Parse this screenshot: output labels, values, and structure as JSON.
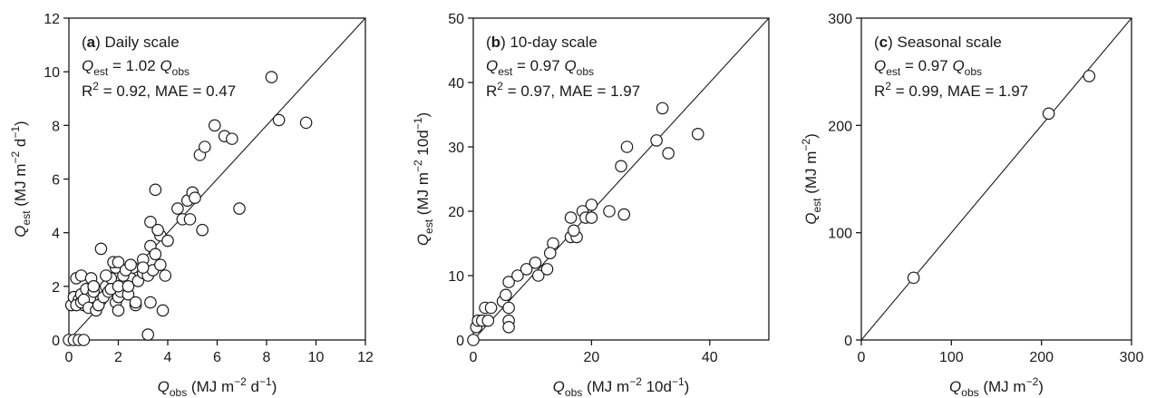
{
  "chart_data": [
    {
      "type": "scatter",
      "panel": "a",
      "label": "Daily scale",
      "equation": {
        "lhs_sym": "Q",
        "lhs_sub": "est",
        "mid": " = 1.02 ",
        "rhs_sym": "Q",
        "rhs_sub": "obs"
      },
      "stats": {
        "r": "R",
        "sup": "2",
        "rest": " = 0.92, MAE = 0.47"
      },
      "xlabel": {
        "sym": "Q",
        "sub": "obs",
        "pre": " (MJ m",
        "exp1": "−2",
        "mid": " d",
        "exp2": "−1",
        "post": ")"
      },
      "ylabel": {
        "sym": "Q",
        "sub": "est",
        "pre": " (MJ m",
        "exp1": "−2",
        "mid": " d",
        "exp2": "−1",
        "post": ")"
      },
      "xlim": [
        0,
        12
      ],
      "ylim": [
        0,
        12
      ],
      "xticks": [
        0,
        2,
        4,
        6,
        8,
        10,
        12
      ],
      "yticks": [
        0,
        2,
        4,
        6,
        8,
        10,
        12
      ],
      "line_slope": 1.0,
      "x": [
        0.0,
        0.1,
        0.2,
        0.3,
        0.4,
        0.5,
        0.6,
        0.2,
        0.4,
        0.5,
        0.6,
        0.7,
        0.8,
        0.9,
        1.0,
        0.3,
        0.5,
        0.6,
        0.8,
        1.0,
        1.1,
        1.2,
        1.3,
        0.9,
        1.0,
        1.2,
        1.4,
        1.5,
        1.6,
        1.7,
        1.8,
        1.9,
        2.0,
        2.1,
        2.2,
        2.3,
        2.4,
        2.5,
        1.5,
        1.7,
        1.9,
        2.0,
        2.2,
        2.4,
        2.6,
        2.8,
        3.0,
        1.8,
        2.0,
        2.3,
        2.5,
        2.7,
        3.0,
        3.2,
        3.4,
        1.3,
        2.0,
        2.7,
        3.0,
        3.3,
        3.5,
        3.7,
        3.9,
        3.3,
        3.5,
        3.7,
        3.8,
        4.0,
        3.6,
        4.4,
        4.6,
        4.8,
        4.9,
        5.0,
        5.1,
        5.3,
        5.4,
        5.5,
        5.9,
        6.3,
        6.6,
        6.9,
        3.3,
        3.2,
        8.2,
        8.5,
        9.6
      ],
      "y": [
        0.0,
        1.3,
        0.0,
        2.3,
        0.0,
        2.4,
        0.0,
        1.6,
        1.5,
        1.7,
        1.3,
        1.9,
        1.4,
        1.6,
        1.8,
        1.3,
        1.4,
        1.5,
        1.2,
        2.0,
        1.1,
        1.3,
        1.5,
        2.3,
        2.0,
        1.3,
        1.6,
        2.0,
        1.8,
        2.3,
        1.9,
        1.4,
        1.6,
        1.8,
        2.1,
        2.5,
        1.7,
        2.3,
        2.4,
        1.9,
        2.7,
        2.0,
        2.4,
        2.0,
        2.7,
        2.2,
        3.0,
        2.9,
        2.9,
        2.6,
        2.8,
        1.3,
        2.5,
        2.4,
        2.6,
        3.4,
        1.1,
        1.4,
        2.7,
        3.5,
        3.2,
        2.8,
        2.4,
        4.4,
        5.6,
        3.9,
        1.1,
        3.7,
        4.1,
        4.9,
        4.5,
        5.2,
        4.5,
        5.5,
        5.3,
        6.9,
        4.1,
        7.2,
        8.0,
        7.6,
        7.5,
        4.9,
        1.4,
        0.2,
        9.8,
        8.2,
        8.1
      ]
    },
    {
      "type": "scatter",
      "panel": "b",
      "label": "10-day scale",
      "equation": {
        "lhs_sym": "Q",
        "lhs_sub": "est",
        "mid": " = 0.97 ",
        "rhs_sym": "Q",
        "rhs_sub": "obs"
      },
      "stats": {
        "r": "R",
        "sup": "2",
        "rest": " = 0.97, MAE = 1.97"
      },
      "xlabel": {
        "sym": "Q",
        "sub": "obs",
        "pre": " (MJ m",
        "exp1": "−2",
        "mid": " 10d",
        "exp2": "−1",
        "post": ")"
      },
      "ylabel": {
        "sym": "Q",
        "sub": "est",
        "pre": " (MJ m",
        "exp1": "−2",
        "mid": " 10d",
        "exp2": "−1",
        "post": ")"
      },
      "xlim": [
        0,
        50
      ],
      "ylim": [
        0,
        50
      ],
      "xticks": [
        0,
        20,
        40
      ],
      "yticks": [
        0,
        10,
        20,
        30,
        40,
        50
      ],
      "line_slope": 1.0,
      "x": [
        0.0,
        0.5,
        0.8,
        1.5,
        2.5,
        2.0,
        3.0,
        5.0,
        5.5,
        6.0,
        6.0,
        6.0,
        6.0,
        7.5,
        9.0,
        10.5,
        11.0,
        12.5,
        13.5,
        13.0,
        16.5,
        16.5,
        17.5,
        17.0,
        18.5,
        19.0,
        20.0,
        20.0,
        23.0,
        25.0,
        25.5,
        26.0,
        31.0,
        32.0,
        33.0,
        38.0
      ],
      "y": [
        0.0,
        2.0,
        3.0,
        3.0,
        3.0,
        5.0,
        5.0,
        6.0,
        7.0,
        9.0,
        5.0,
        3.0,
        2.0,
        10.0,
        11.0,
        12.0,
        10.0,
        11.0,
        15.0,
        13.5,
        19.0,
        16.0,
        16.0,
        17.0,
        20.0,
        19.0,
        19.0,
        21.0,
        20.0,
        27.0,
        19.5,
        30.0,
        31.0,
        36.0,
        29.0,
        32.0
      ]
    },
    {
      "type": "scatter",
      "panel": "c",
      "label": "Seasonal scale",
      "equation": {
        "lhs_sym": "Q",
        "lhs_sub": "est",
        "mid": " = 0.97 ",
        "rhs_sym": "Q",
        "rhs_sub": "obs"
      },
      "stats": {
        "r": "R",
        "sup": "2",
        "rest": " = 0.99, MAE = 1.97"
      },
      "xlabel": {
        "sym": "Q",
        "sub": "obs",
        "pre": " (MJ m",
        "exp1": "−2",
        "mid": "",
        "exp2": "",
        "post": ")"
      },
      "ylabel": {
        "sym": "Q",
        "sub": "est",
        "pre": " (MJ m",
        "exp1": "−2",
        "mid": "",
        "exp2": "",
        "post": ")"
      },
      "xlim": [
        0,
        300
      ],
      "ylim": [
        0,
        300
      ],
      "xticks": [
        0,
        100,
        200,
        300
      ],
      "yticks": [
        0,
        100,
        200,
        300
      ],
      "line_slope": 1.0,
      "x": [
        58,
        208,
        253
      ],
      "y": [
        58,
        211,
        246
      ]
    }
  ]
}
